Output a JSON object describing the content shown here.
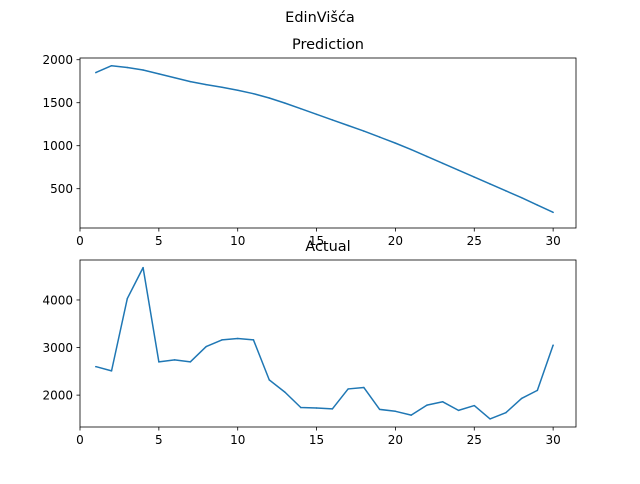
{
  "figure": {
    "suptitle": "EdinVišća",
    "line_color": "#1f77b4"
  },
  "chart_data": [
    {
      "type": "line",
      "title": "Prediction",
      "xlabel": "",
      "ylabel": "",
      "xlim": [
        0,
        31.45
      ],
      "ylim": [
        43,
        2020
      ],
      "x_ticks": [
        0,
        5,
        10,
        15,
        20,
        25,
        30
      ],
      "y_ticks": [
        500,
        1000,
        1500,
        2000
      ],
      "grid": false,
      "x": [
        1,
        2,
        3,
        4,
        5,
        6,
        7,
        8,
        9,
        10,
        11,
        12,
        13,
        14,
        15,
        16,
        17,
        18,
        19,
        20,
        21,
        22,
        23,
        24,
        25,
        26,
        27,
        28,
        29,
        30
      ],
      "values": [
        1850,
        1930,
        1910,
        1880,
        1835,
        1790,
        1745,
        1710,
        1680,
        1645,
        1605,
        1555,
        1495,
        1430,
        1365,
        1300,
        1235,
        1170,
        1100,
        1030,
        955,
        875,
        795,
        715,
        635,
        555,
        475,
        395,
        310,
        225
      ]
    },
    {
      "type": "line",
      "title": "Actual",
      "xlabel": "",
      "ylabel": "",
      "xlim": [
        0,
        31.45
      ],
      "ylim": [
        1330,
        4840
      ],
      "x_ticks": [
        0,
        5,
        10,
        15,
        20,
        25,
        30
      ],
      "y_ticks": [
        2000,
        3000,
        4000
      ],
      "grid": false,
      "x": [
        1,
        2,
        3,
        4,
        5,
        6,
        7,
        8,
        9,
        10,
        11,
        12,
        13,
        14,
        15,
        16,
        17,
        18,
        19,
        20,
        21,
        22,
        23,
        24,
        25,
        26,
        27,
        28,
        29,
        30
      ],
      "values": [
        2600,
        2510,
        4030,
        4680,
        2700,
        2740,
        2700,
        3020,
        3160,
        3190,
        3160,
        2320,
        2060,
        1740,
        1730,
        1710,
        2130,
        2160,
        1700,
        1660,
        1580,
        1790,
        1860,
        1680,
        1780,
        1500,
        1630,
        1930,
        2100,
        3050
      ]
    }
  ]
}
